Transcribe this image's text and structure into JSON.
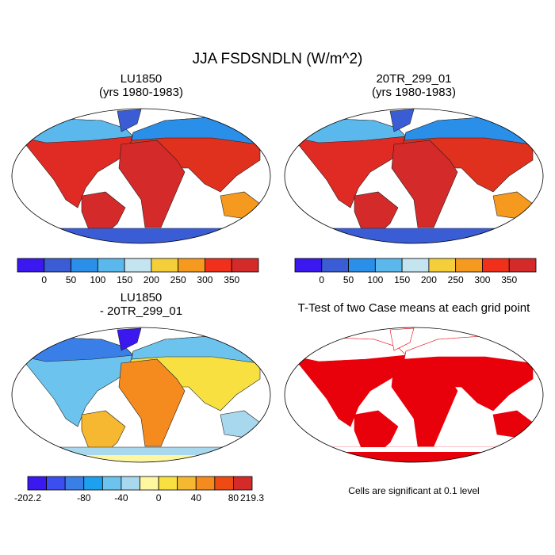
{
  "title": "JJA FSDSNDLN (W/m^2)",
  "panels": [
    {
      "title": [
        "LU1850",
        "(yrs 1980-1983)"
      ]
    },
    {
      "title": [
        "20TR_299_01",
        "(yrs 1980-1983)"
      ]
    },
    {
      "title": [
        "LU1850",
        "- 20TR_299_01"
      ]
    },
    {
      "title": [
        "T-Test of two Case means at each grid point"
      ]
    }
  ],
  "colorbars": [
    {
      "colors": [
        "#3b17f0",
        "#3a5dd6",
        "#2a8fe8",
        "#5ab8ec",
        "#c4e4f0",
        "#f5cf3a",
        "#f59a1e",
        "#f0301a",
        "#d42a2a"
      ],
      "labels": [
        0,
        50,
        100,
        150,
        200,
        250,
        300,
        350
      ]
    },
    {
      "colors": [
        "#3b17f0",
        "#3a5dd6",
        "#2a8fe8",
        "#5ab8ec",
        "#c4e4f0",
        "#f5cf3a",
        "#f59a1e",
        "#f0301a",
        "#d42a2a"
      ],
      "labels": [
        0,
        50,
        100,
        150,
        200,
        250,
        300,
        350
      ]
    },
    {
      "colors": [
        "#3b17f0",
        "#3c4ef0",
        "#3a7fe8",
        "#1ea0f0",
        "#6cc4ee",
        "#a8d8ee",
        "#fff6a0",
        "#f7e040",
        "#f5b830",
        "#f58a1e",
        "#f04a14",
        "#d42a2a"
      ],
      "labels": [
        -202.2,
        -80,
        -40,
        0,
        40,
        80,
        219.3
      ]
    }
  ],
  "note": "Cells are significant at 0.1 level"
}
